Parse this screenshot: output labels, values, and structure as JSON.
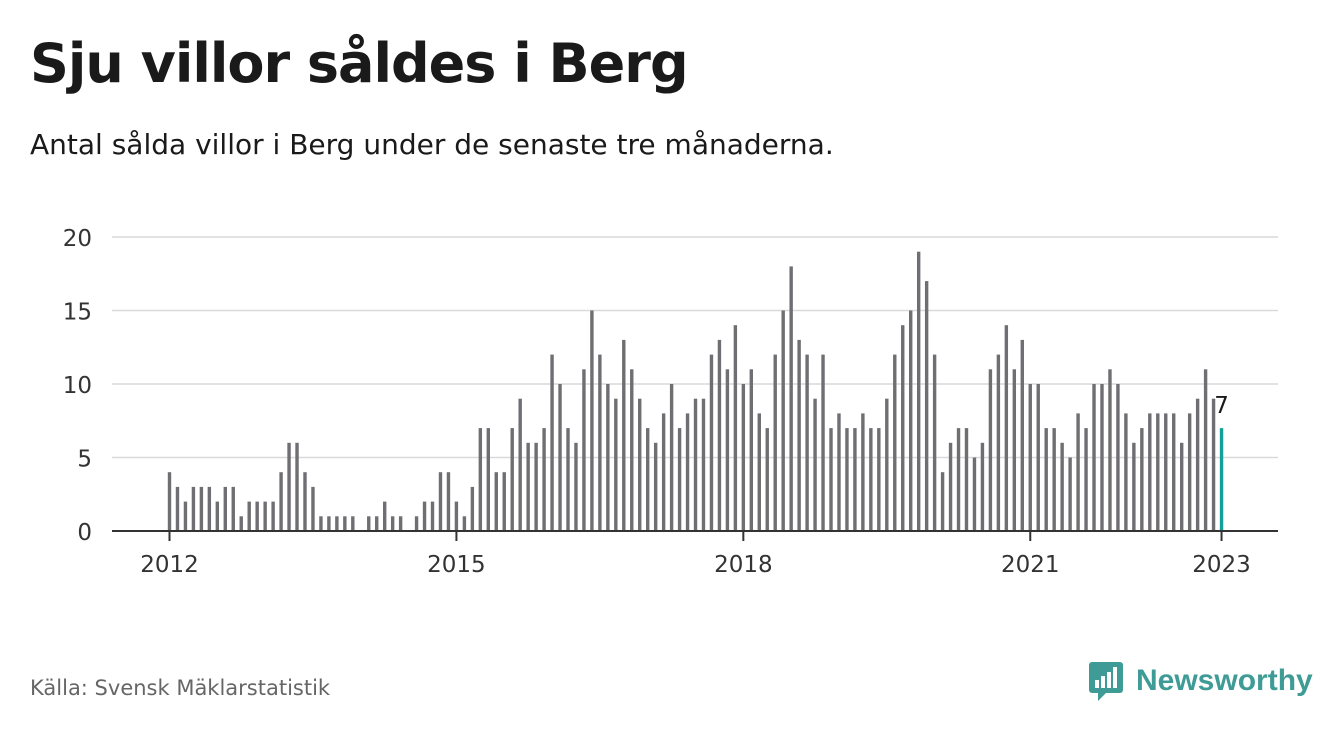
{
  "title": "Sju villor såldes i Berg",
  "subtitle": "Antal sålda villor i Berg under de senaste tre månaderna.",
  "source": "Källa: Svensk Mäklarstatistik",
  "brand": {
    "name": "Newsworthy",
    "icon": "newsworthy-logo-icon",
    "color": "#3f9b96"
  },
  "colors": {
    "bar": "#6e6e73",
    "highlight": "#14a098",
    "grid": "#d9d9d9",
    "axis": "#333333"
  },
  "chart_data": {
    "type": "bar",
    "start": "2012-01",
    "x_ticks": [
      "2012",
      "2015",
      "2018",
      "2021",
      "2023"
    ],
    "ylim": [
      0,
      20
    ],
    "y_ticks": [
      0,
      5,
      10,
      15,
      20
    ],
    "values": [
      4,
      3,
      2,
      3,
      3,
      3,
      2,
      3,
      3,
      1,
      2,
      2,
      2,
      2,
      4,
      6,
      6,
      4,
      3,
      1,
      1,
      1,
      1,
      1,
      0,
      1,
      1,
      2,
      1,
      1,
      0,
      1,
      2,
      2,
      4,
      4,
      2,
      1,
      3,
      7,
      7,
      4,
      4,
      7,
      9,
      6,
      6,
      7,
      12,
      10,
      7,
      6,
      11,
      15,
      12,
      10,
      9,
      13,
      11,
      9,
      7,
      6,
      8,
      10,
      7,
      8,
      9,
      9,
      12,
      13,
      11,
      14,
      10,
      11,
      8,
      7,
      12,
      15,
      18,
      13,
      12,
      9,
      12,
      7,
      8,
      7,
      7,
      8,
      7,
      7,
      9,
      12,
      14,
      15,
      19,
      17,
      12,
      4,
      6,
      7,
      7,
      5,
      6,
      11,
      12,
      14,
      11,
      13,
      10,
      10,
      7,
      7,
      6,
      5,
      8,
      7,
      10,
      10,
      11,
      10,
      8,
      6,
      7,
      8,
      8,
      8,
      8,
      6,
      8,
      9,
      11,
      9,
      7
    ],
    "highlight_label": "7"
  }
}
